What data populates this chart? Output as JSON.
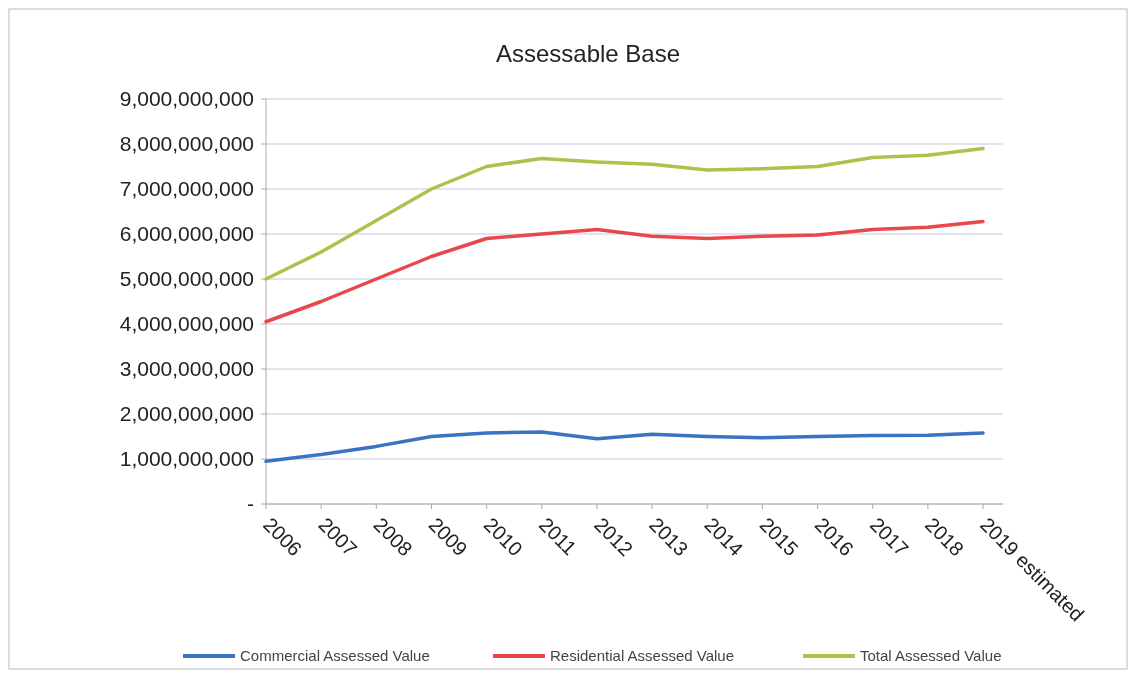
{
  "chart_data": {
    "type": "line",
    "title": "Assessable Base",
    "categories": [
      "2006",
      "2007",
      "2008",
      "2009",
      "2010",
      "2011",
      "2012",
      "2013",
      "2014",
      "2015",
      "2016",
      "2017",
      "2018",
      "2019 estimated"
    ],
    "series": [
      {
        "name": "Commercial Assessed Value",
        "color": "#3a72c4",
        "values": [
          950000000,
          1100000000,
          1280000000,
          1500000000,
          1580000000,
          1600000000,
          1450000000,
          1550000000,
          1500000000,
          1470000000,
          1500000000,
          1520000000,
          1530000000,
          1580000000
        ]
      },
      {
        "name": "Residential  Assessed Value",
        "color": "#e8474c",
        "values": [
          4050000000,
          4500000000,
          5000000000,
          5500000000,
          5900000000,
          6000000000,
          6100000000,
          5950000000,
          5900000000,
          5950000000,
          5980000000,
          6100000000,
          6150000000,
          6280000000
        ]
      },
      {
        "name": "Total Assessed Value",
        "color": "#a8c44a",
        "values": [
          5000000000,
          5600000000,
          6300000000,
          7000000000,
          7500000000,
          7680000000,
          7600000000,
          7550000000,
          7420000000,
          7450000000,
          7500000000,
          7700000000,
          7750000000,
          7900000000
        ]
      }
    ],
    "ylim": [
      0,
      9000000000
    ],
    "yticks": [
      {
        "value": 0,
        "label": "-"
      },
      {
        "value": 1000000000,
        "label": "1,000,000,000"
      },
      {
        "value": 2000000000,
        "label": "2,000,000,000"
      },
      {
        "value": 3000000000,
        "label": "3,000,000,000"
      },
      {
        "value": 4000000000,
        "label": "4,000,000,000"
      },
      {
        "value": 5000000000,
        "label": "5,000,000,000"
      },
      {
        "value": 6000000000,
        "label": "6,000,000,000"
      },
      {
        "value": 7000000000,
        "label": "7,000,000,000"
      },
      {
        "value": 8000000000,
        "label": "8,000,000,000"
      },
      {
        "value": 9000000000,
        "label": "9,000,000,000"
      }
    ],
    "grid": "y",
    "legend": "bottom",
    "marker": "none",
    "line_style": "solid"
  }
}
